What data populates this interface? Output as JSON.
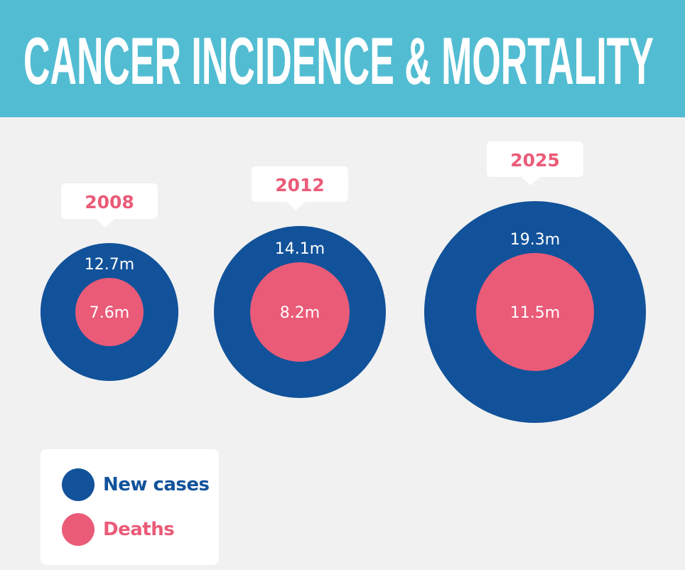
{
  "title": "CANCER INCIDENCE & MORTALITY",
  "colors": {
    "header": "#52bdd2",
    "new_cases": "#11529a",
    "deaths": "#ea5b78",
    "background": "#f1f1f1"
  },
  "chart_data": {
    "type": "bubble",
    "title": "CANCER INCIDENCE & MORTALITY",
    "unit": "million",
    "categories": [
      "2008",
      "2012",
      "2025"
    ],
    "series": [
      {
        "name": "New cases",
        "values": [
          12.7,
          14.1,
          19.3
        ],
        "labels": [
          "12.7m",
          "14.1m",
          "19.3m"
        ]
      },
      {
        "name": "Deaths",
        "values": [
          7.6,
          8.2,
          11.5
        ],
        "labels": [
          "7.6m",
          "8.2m",
          "11.5m"
        ]
      }
    ],
    "legend": {
      "placement": "bottom-left",
      "entries": [
        "New cases",
        "Deaths"
      ]
    }
  }
}
